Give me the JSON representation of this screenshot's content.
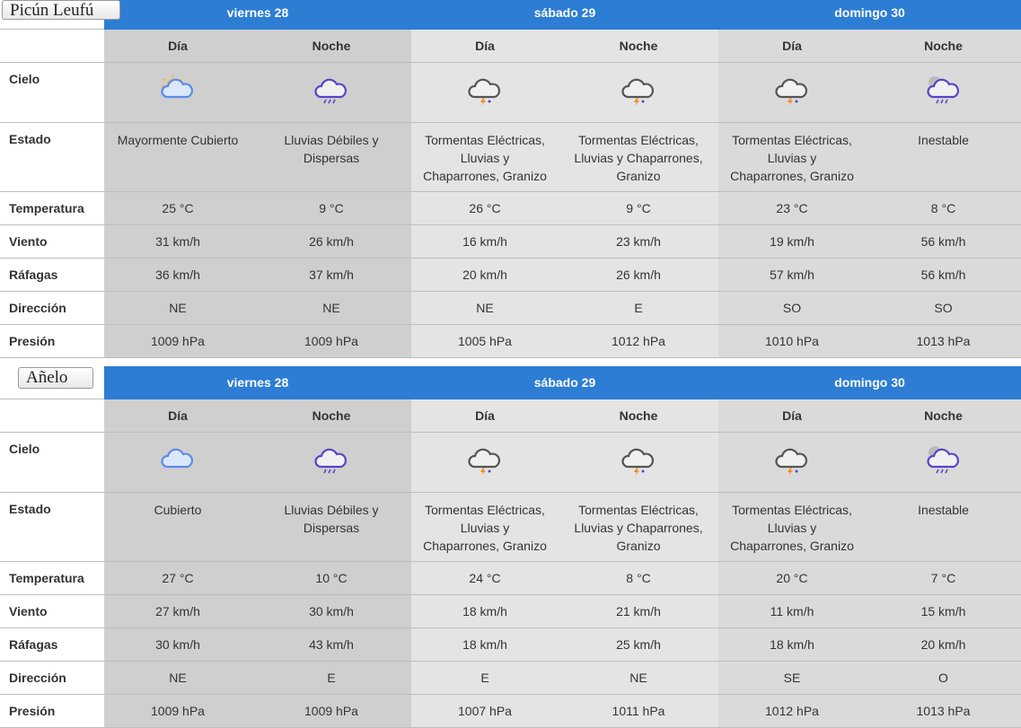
{
  "panels": [
    {
      "name": "Picún Leufú",
      "days": [
        "viernes 28",
        "sábado 29",
        "domingo 30"
      ],
      "periods": [
        "Día",
        "Noche",
        "Día",
        "Noche",
        "Día",
        "Noche"
      ],
      "row_labels": [
        "Cielo",
        "Estado",
        "Temperatura",
        "Viento",
        "Ráfagas",
        "Dirección",
        "Presión"
      ],
      "estado": [
        "Mayormente Cubierto",
        "Lluvias Débiles y Dispersas",
        "Tormentas Eléctricas, Lluvias y Chaparrones, Granizo",
        "Tormentas Eléctricas, Lluvias y Chaparrones, Granizo",
        "Tormentas Eléctricas, Lluvias y Chaparrones, Granizo",
        "Inestable"
      ],
      "temperatura": [
        "25 °C",
        "9 °C",
        "26 °C",
        "9 °C",
        "23 °C",
        "8 °C"
      ],
      "viento": [
        "31 km/h",
        "26 km/h",
        "16 km/h",
        "23 km/h",
        "19 km/h",
        "56 km/h"
      ],
      "rafagas": [
        "36 km/h",
        "37 km/h",
        "20 km/h",
        "26 km/h",
        "57 km/h",
        "56 km/h"
      ],
      "direccion": [
        "NE",
        "NE",
        "NE",
        "E",
        "SO",
        "SO"
      ],
      "presion": [
        "1009 hPa",
        "1009 hPa",
        "1005 hPa",
        "1012 hPa",
        "1010 hPa",
        "1013 hPa"
      ]
    },
    {
      "name": "Añelo",
      "days": [
        "viernes 28",
        "sábado 29",
        "domingo 30"
      ],
      "periods": [
        "Día",
        "Noche",
        "Día",
        "Noche",
        "Día",
        "Noche"
      ],
      "row_labels": [
        "Cielo",
        "Estado",
        "Temperatura",
        "Viento",
        "Ráfagas",
        "Dirección",
        "Presión"
      ],
      "estado": [
        "Cubierto",
        "Lluvias Débiles y Dispersas",
        "Tormentas Eléctricas, Lluvias y Chaparrones, Granizo",
        "Tormentas Eléctricas, Lluvias y Chaparrones, Granizo",
        "Tormentas Eléctricas, Lluvias y Chaparrones, Granizo",
        "Inestable"
      ],
      "temperatura": [
        "27 °C",
        "10 °C",
        "24 °C",
        "8 °C",
        "20 °C",
        "7 °C"
      ],
      "viento": [
        "27 km/h",
        "30 km/h",
        "18 km/h",
        "21 km/h",
        "11 km/h",
        "15 km/h"
      ],
      "rafagas": [
        "30 km/h",
        "43 km/h",
        "18 km/h",
        "25 km/h",
        "18 km/h",
        "20 km/h"
      ],
      "direccion": [
        "NE",
        "E",
        "E",
        "NE",
        "SE",
        "O"
      ],
      "presion": [
        "1009 hPa",
        "1009 hPa",
        "1007 hPa",
        "1011 hPa",
        "1012 hPa",
        "1013 hPa"
      ]
    }
  ]
}
